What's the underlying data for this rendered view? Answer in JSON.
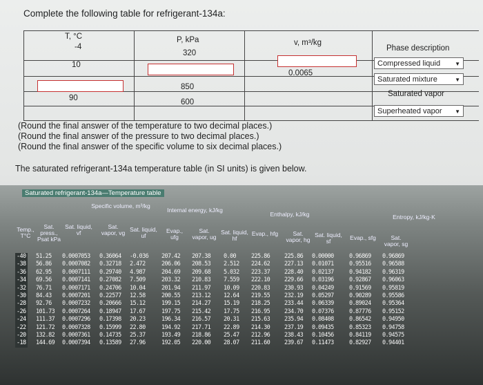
{
  "problem": {
    "title": "Complete the following table for refrigerant-134a:",
    "headers": {
      "t": "T, °C",
      "p": "P, kPa",
      "v": "v, m³/kg",
      "phase": "Phase description"
    },
    "rows": [
      {
        "t": "-4",
        "p": "320",
        "v": "",
        "phase": ""
      },
      {
        "t": "10",
        "p": "",
        "v": "0.0065",
        "phase": "Compressed liquid"
      },
      {
        "t": "",
        "p": "850",
        "v": "",
        "phase": "Saturated mixture"
      },
      {
        "t": "90",
        "p": "600",
        "v": "",
        "phase": "Saturated vapor"
      },
      {
        "t": "",
        "p": "",
        "v": "",
        "phase": "Superheated vapor"
      }
    ],
    "notes": [
      "(Round the final answer of the temperature to two decimal places.)",
      "(Round the final answer of the pressure to two decimal places.)",
      "(Round the final answer of the specific volume to six decimal places.)"
    ],
    "sat_intro": "The saturated refrigerant-134a temperature table (in SI units) is given below."
  },
  "sat_table": {
    "title": "Saturated refrigerant-134a—Temperature table",
    "group_headers": {
      "volume": "Specific volume, m³/kg",
      "energy": "Internal energy, kJ/kg",
      "enthalpy": "Enthalpy, kJ/kg",
      "entropy": "Entropy, kJ/kg·K"
    },
    "col_headers": {
      "temp": "Temp., T°C",
      "press": "Sat. press., Psat kPa",
      "vf": "Sat. liquid, vf",
      "vg": "Sat. vapor, vg",
      "uf": "Sat. liquid, uf",
      "ufg": "Evap., ufg",
      "ug": "Sat. vapor, ug",
      "hf": "Sat. liquid, hf",
      "hfg": "Evap., hfg",
      "hg": "Sat. vapor, hg",
      "sf": "Sat. liquid, sf",
      "sfg": "Evap., sfg",
      "sg": "Sat. vapor, sg"
    },
    "rows_text": {
      "temp": "-40\n-38\n-36\n-34\n-32\n-30\n-28\n-26\n-24\n-22\n-20\n-18",
      "press": "51.25\n56.86\n62.95\n69.56\n76.71\n84.43\n92.76\n101.73\n111.37\n121.72\n132.82\n144.69",
      "vf": "0.0007053\n0.0007082\n0.0007111\n0.0007141\n0.0007171\n0.0007201\n0.0007232\n0.0007264\n0.0007296\n0.0007328\n0.0007361\n0.0007394",
      "vg": "0.36064\n0.32718\n0.29740\n0.27082\n0.24706\n0.22577\n0.20666\n0.18947\n0.17398\n0.15999\n0.14735\n0.13589",
      "uf": "-0.036\n2.472\n4.987\n7.509\n10.04\n12.58\n15.12\n17.67\n20.23\n22.80\n25.37\n27.96",
      "ufg": "207.42\n206.06\n204.69\n203.32\n201.94\n200.55\n199.15\n197.75\n196.34\n194.92\n193.49\n192.05",
      "ug": "207.38\n208.53\n209.68\n210.83\n211.97\n213.12\n214.27\n215.42\n216.57\n217.71\n218.86\n220.00",
      "hf": "0.00\n2.512\n5.032\n7.559\n10.09\n12.64\n15.19\n17.75\n20.31\n22.89\n25.47\n28.07",
      "hfg": "225.86\n224.62\n223.37\n222.10\n220.83\n219.55\n218.25\n216.95\n215.63\n214.30\n212.96\n211.60",
      "hg": "225.86\n227.13\n228.40\n229.66\n230.93\n232.19\n233.44\n234.70\n235.94\n237.19\n238.43\n239.67",
      "sf": "0.00000\n0.01071\n0.02137\n0.03196\n0.04249\n0.05297\n0.06339\n0.07376\n0.08408\n0.09435\n0.10456\n0.11473",
      "sfg": "0.96869\n0.95516\n0.94182\n0.92867\n0.91569\n0.90289\n0.89024\n0.87776\n0.86542\n0.85323\n0.84119\n0.82927",
      "sg": "0.96869\n0.96588\n0.96319\n0.96063\n0.95819\n0.95586\n0.95364\n0.95152\n0.94950\n0.94758\n0.94575\n0.94401"
    }
  }
}
